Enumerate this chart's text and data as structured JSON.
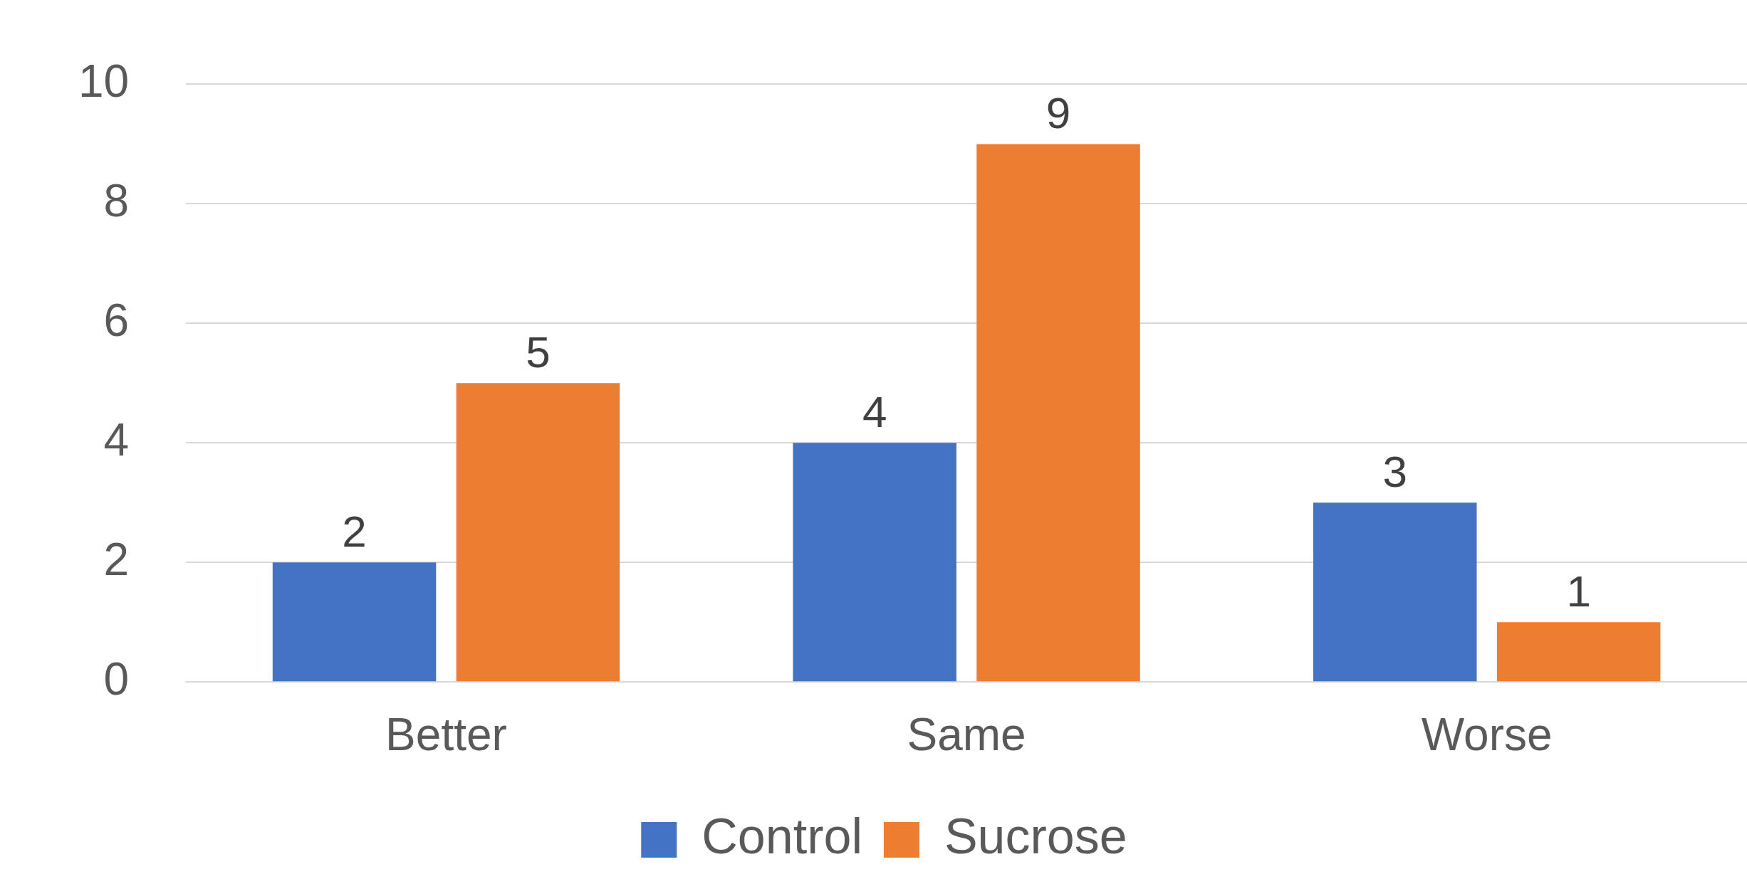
{
  "chart_data": {
    "type": "bar",
    "categories": [
      "Better",
      "Same",
      "Worse"
    ],
    "series": [
      {
        "name": "Control",
        "color": "#4472c4",
        "values": [
          2,
          4,
          3
        ]
      },
      {
        "name": "Sucrose",
        "color": "#ed7d31",
        "values": [
          5,
          9,
          1
        ]
      }
    ],
    "ylim": [
      0,
      10
    ],
    "yticks": [
      0,
      2,
      4,
      6,
      8,
      10
    ],
    "grid": "y",
    "legend": "bottom",
    "data_labels": true
  }
}
